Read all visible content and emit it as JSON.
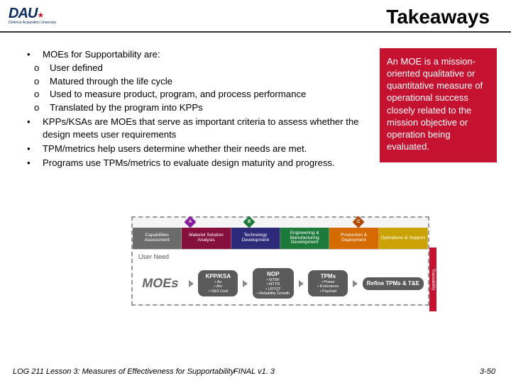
{
  "header": {
    "logo_text": "DAU",
    "logo_subtitle": "Defense Acquisition University",
    "title": "Takeaways"
  },
  "colors": {
    "brand_red": "#c41230",
    "brand_blue": "#0a2a5c",
    "rule": "#333333"
  },
  "bullets": [
    {
      "text": "MOEs for Supportability are:",
      "children": [
        "User defined",
        "Matured through the life cycle",
        "Used to measure product, program, and process performance",
        "Translated by the program into KPPs"
      ]
    },
    {
      "text": "KPPs/KSAs are MOEs that serve as important criteria to assess whether the design meets user requirements"
    },
    {
      "text": "TPM/metrics help users determine whether their needs are met."
    },
    {
      "text": "Programs use TPMs/metrics to evaluate design maturity and progress."
    }
  ],
  "sidebar": {
    "text": "An MOE is a mission-oriented qualitative or quantitative measure of operational success closely related to the mission objective or operation being evaluated."
  },
  "diagram": {
    "milestones": [
      {
        "label": "A",
        "left_pct": 18,
        "color": "#8a1f9e"
      },
      {
        "label": "B",
        "left_pct": 38,
        "color": "#1e7a3a"
      },
      {
        "label": "C",
        "left_pct": 75,
        "color": "#b04a00"
      }
    ],
    "phases": [
      {
        "label": "Capabilities Assessment",
        "color": "#6b6b6b"
      },
      {
        "label": "Materiel Solution Analysis",
        "color": "#85103d"
      },
      {
        "label": "Technology Development",
        "color": "#2e2a7a"
      },
      {
        "label": "Engineering & Manufacturing Development",
        "color": "#1e7a3a"
      },
      {
        "label": "Production & Deployment",
        "color": "#d46a00"
      },
      {
        "label": "Operations & Support",
        "color": "#caa300"
      }
    ],
    "user_need_left": "User Need",
    "traceability_label": "Traceability",
    "moes_label": "MOEs",
    "pills": [
      {
        "title": "KPP/KSA",
        "items": [
          "• Ao",
          "• Am",
          "• O&S Cost"
        ],
        "color": "#5a5a5a"
      },
      {
        "title": "NOP",
        "items": [
          "• MTBF",
          "• MTTR",
          "• LRTQT",
          "• Reliability Growth"
        ],
        "color": "#5a5a5a"
      },
      {
        "title": "TPMs",
        "items": [
          "• Power",
          "• Endurance",
          "• Payload"
        ],
        "color": "#5a5a5a"
      },
      {
        "title": "Refine TPMs & T&E",
        "items": [],
        "color": "#5a5a5a"
      }
    ]
  },
  "footer": {
    "left": "LOG 211 Lesson 3: Measures of Effectiveness for Supportability",
    "center": "FINAL v1. 3",
    "right": "3-50"
  }
}
